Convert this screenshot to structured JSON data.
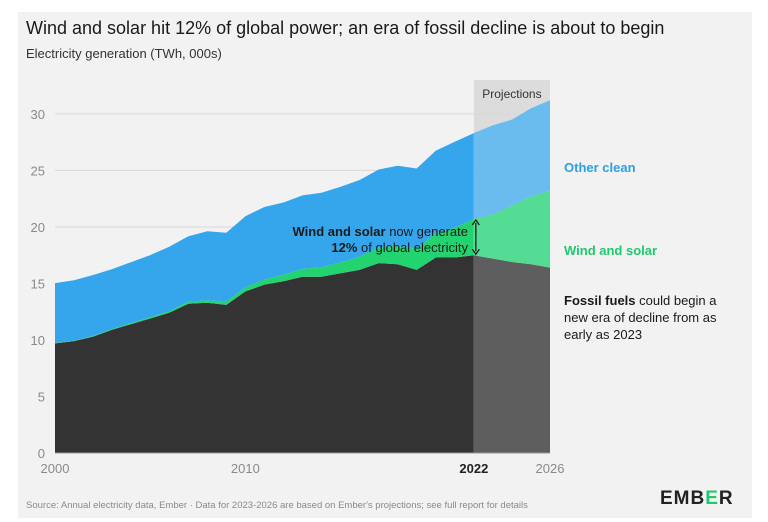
{
  "title": "Wind and solar hit 12% of global power; an era of fossil decline is about to begin",
  "subtitle": "Electricity generation (TWh, 000s)",
  "projection_label": "Projections",
  "footer": "Source: Annual electricity data, Ember · Data for 2023-2026 are based on Ember's projections; see full report for details",
  "logo": "EMBER",
  "annotation": {
    "bold": "Wind and solar",
    "rest1": " now generate",
    "bold2": "12%",
    "rest2": " of global electricity"
  },
  "fossil_note": {
    "bold": "Fossil fuels",
    "rest": " could begin a new era of decline from as early as 2023"
  },
  "colors": {
    "fossil": "#333333",
    "wind_solar": "#22d36f",
    "other_clean": "#36a6ec",
    "other_clean_proj": "#6bbcee",
    "wind_solar_proj": "#55dc94",
    "fossil_proj": "#5e5e5e",
    "projection_band": "#dcdcdc",
    "other_clean_text": "#2f9fe3",
    "wind_solar_text": "#1fc96c"
  },
  "chart_data": {
    "type": "area",
    "stacked": true,
    "x": [
      2000,
      2001,
      2002,
      2003,
      2004,
      2005,
      2006,
      2007,
      2008,
      2009,
      2010,
      2011,
      2012,
      2013,
      2014,
      2015,
      2016,
      2017,
      2018,
      2019,
      2020,
      2021,
      2022,
      2023,
      2024,
      2025,
      2026
    ],
    "series": [
      {
        "name": "Fossil fuels",
        "values": [
          9.7,
          9.9,
          10.3,
          10.9,
          11.4,
          11.9,
          12.4,
          13.2,
          13.3,
          13.1,
          14.3,
          14.9,
          15.2,
          15.6,
          15.6,
          15.9,
          16.2,
          16.8,
          16.7,
          16.2,
          17.3,
          17.3,
          17.5,
          17.2,
          16.9,
          16.7,
          16.4
        ]
      },
      {
        "name": "Wind and solar",
        "values": [
          0.03,
          0.04,
          0.05,
          0.07,
          0.09,
          0.11,
          0.14,
          0.17,
          0.22,
          0.28,
          0.35,
          0.46,
          0.56,
          0.69,
          0.82,
          0.96,
          1.15,
          1.38,
          1.62,
          1.87,
          2.15,
          2.64,
          3.2,
          3.9,
          5.0,
          6.0,
          6.8
        ]
      },
      {
        "name": "Other clean",
        "values": [
          5.3,
          5.35,
          5.4,
          5.3,
          5.4,
          5.5,
          5.7,
          5.8,
          6.1,
          6.1,
          6.3,
          6.4,
          6.4,
          6.5,
          6.6,
          6.7,
          6.8,
          6.9,
          7.1,
          7.1,
          7.3,
          7.6,
          7.6,
          7.9,
          7.6,
          7.8,
          8.0
        ]
      }
    ],
    "projection_start": 2022,
    "xlim": [
      2000,
      2026
    ],
    "ylim": [
      0,
      33
    ],
    "yticks": [
      0,
      5,
      10,
      15,
      20,
      25,
      30
    ],
    "xticks": [
      2000,
      2010,
      2022,
      2026
    ],
    "grid": true
  }
}
